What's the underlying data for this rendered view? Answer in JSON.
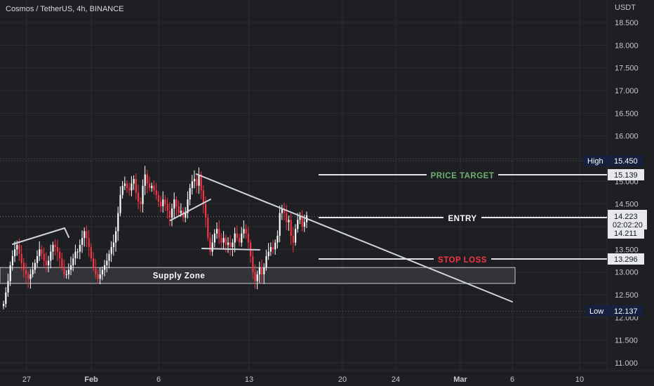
{
  "header": {
    "title": "Cosmos / TetherUS, 4h, BINANCE",
    "currency": "USDT"
  },
  "chart_data": {
    "type": "candlestick",
    "title": "Cosmos / TetherUS, 4h, BINANCE",
    "ylabel": "USDT",
    "ylim": [
      10.85,
      18.9
    ],
    "y_ticks": [
      "18.500",
      "18.000",
      "17.500",
      "17.000",
      "16.500",
      "16.000",
      "15.500",
      "15.000",
      "14.500",
      "14.000",
      "13.500",
      "13.000",
      "12.500",
      "12.000",
      "11.500",
      "11.000"
    ],
    "x_ticks": [
      "27",
      "Feb",
      "6",
      "13",
      "20",
      "24",
      "Mar",
      "6",
      "10"
    ],
    "high": {
      "label": "High",
      "value": "15.450"
    },
    "low": {
      "label": "Low",
      "value": "12.137"
    },
    "last_price": {
      "value": "14.223",
      "countdown": "02:02:20"
    },
    "entry_tag": "14.211",
    "annotations": {
      "price_target": {
        "label": "PRICE TARGET",
        "value": "15.139",
        "color": "#6fae72"
      },
      "entry": {
        "label": "ENTRY",
        "color": "#ffffff"
      },
      "stop_loss": {
        "label": "STOP LOSS",
        "value": "13.296",
        "color": "#f23645"
      },
      "supply_zone": {
        "label": "Supply Zone",
        "top": 13.1,
        "bottom": 12.75
      }
    },
    "colors": {
      "up": "#ffffff",
      "down": "#f23645",
      "grid": "#2a2c31",
      "line": "#d1d4dc"
    },
    "closes": [
      12.3,
      12.55,
      12.8,
      13.15,
      13.35,
      13.5,
      13.6,
      13.4,
      13.2,
      13.05,
      12.95,
      12.85,
      12.95,
      13.05,
      13.2,
      13.35,
      13.5,
      13.4,
      13.25,
      13.15,
      13.25,
      13.45,
      13.6,
      13.55,
      13.45,
      13.3,
      13.1,
      12.95,
      12.95,
      13.05,
      13.15,
      13.3,
      13.45,
      13.45,
      13.6,
      13.75,
      13.9,
      13.75,
      13.55,
      13.3,
      13.1,
      12.95,
      12.85,
      12.95,
      13.05,
      13.15,
      13.25,
      13.4,
      13.55,
      13.65,
      13.9,
      14.3,
      14.7,
      14.9,
      14.95,
      14.85,
      14.8,
      14.95,
      15.05,
      14.75,
      14.55,
      14.5,
      14.9,
      15.15,
      14.95,
      14.85,
      14.9,
      14.8,
      14.7,
      14.55,
      14.45,
      14.6,
      14.5,
      14.35,
      14.2,
      14.4,
      14.6,
      14.45,
      14.3,
      14.35,
      14.2,
      14.3,
      14.6,
      14.85,
      15.0,
      15.05,
      14.9,
      15.15,
      14.8,
      14.5,
      14.2,
      13.75,
      13.45,
      13.65,
      13.85,
      13.95,
      13.75,
      13.65,
      13.75,
      13.6,
      13.65,
      13.55,
      13.65,
      13.85,
      13.75,
      13.65,
      13.85,
      13.95,
      13.85,
      13.65,
      13.35,
      13.0,
      12.8,
      12.95,
      13.1,
      12.95,
      13.1,
      13.35,
      13.45,
      13.55,
      13.5,
      13.65,
      13.8,
      14.3,
      14.4,
      14.3,
      14.1,
      14.15,
      13.8,
      13.65,
      13.95,
      14.15,
      14.25,
      14.0,
      14.1,
      14.25
    ]
  }
}
